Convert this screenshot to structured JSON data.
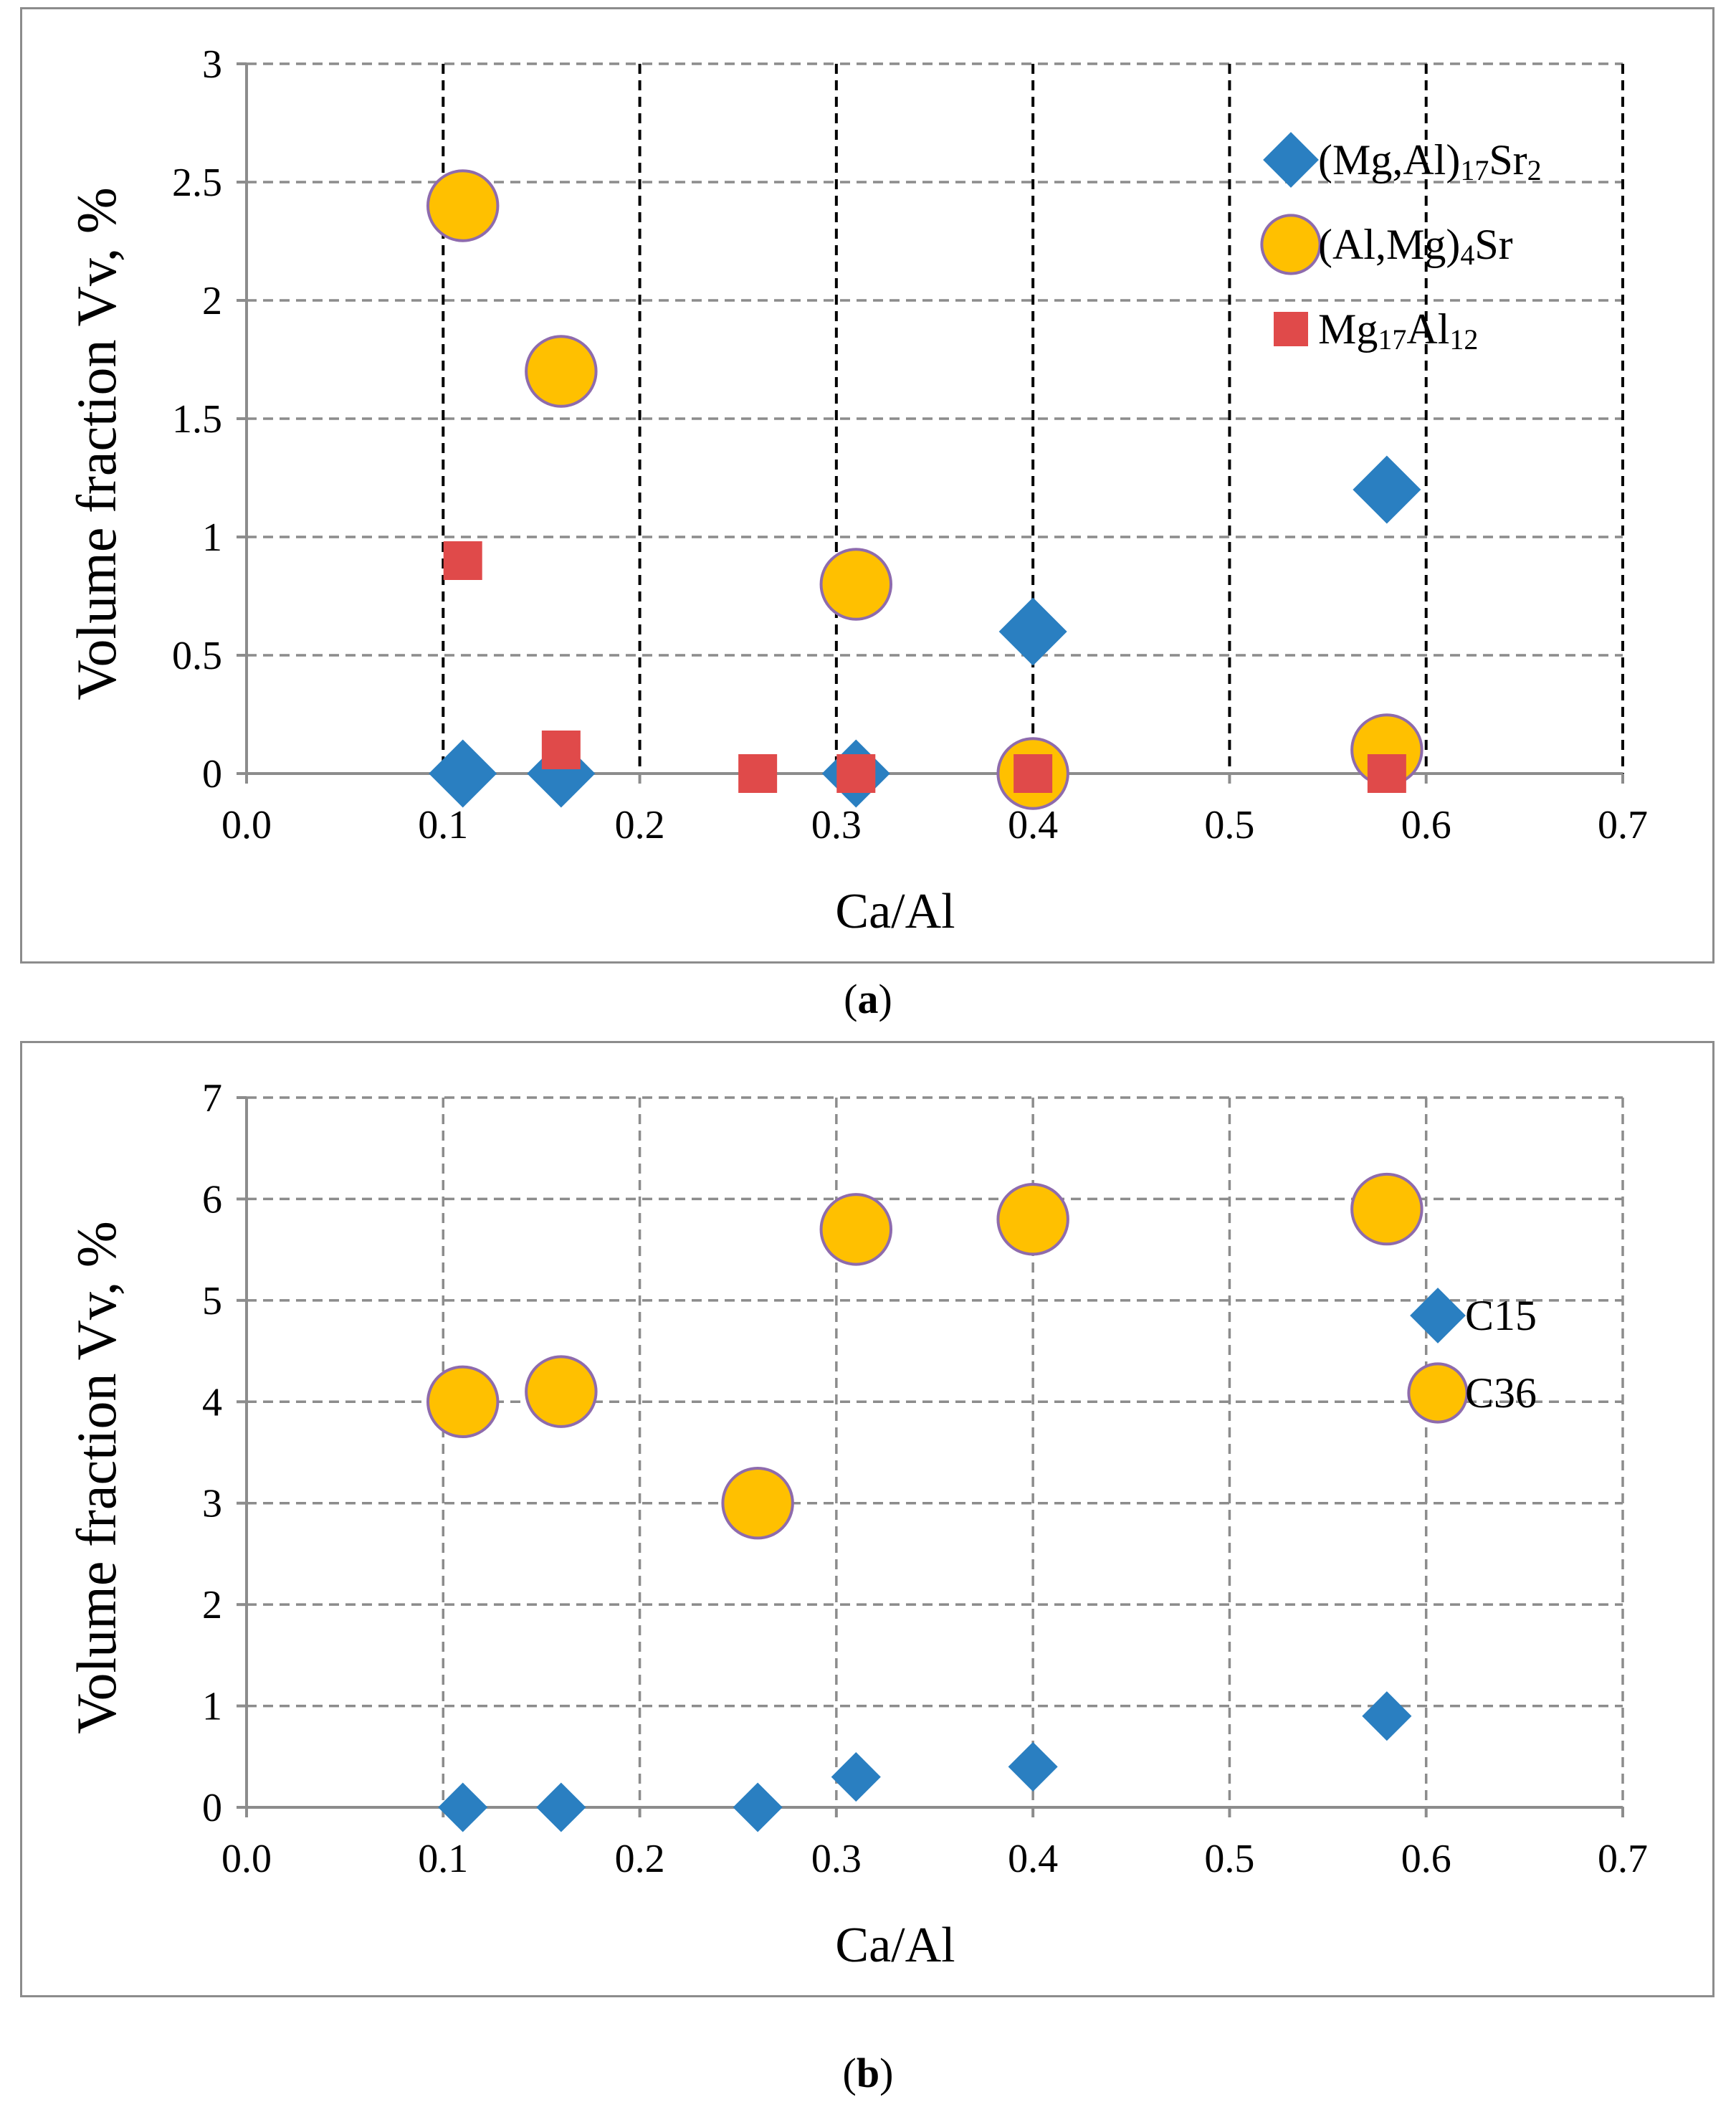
{
  "figure": {
    "caption_a": "a",
    "caption_b": "b"
  },
  "chart_data": [
    {
      "type": "scatter",
      "panel": "a",
      "title": "",
      "xlabel": "Ca/Al",
      "ylabel": "Volume fraction Vv, %",
      "xlim": [
        0.0,
        0.7
      ],
      "ylim": [
        0,
        3
      ],
      "xticks": [
        "0.0",
        "0.1",
        "0.2",
        "0.3",
        "0.4",
        "0.5",
        "0.6",
        "0.7"
      ],
      "yticks": [
        "0",
        "0.5",
        "1",
        "1.5",
        "2",
        "2.5",
        "3"
      ],
      "ytick_values": [
        0,
        0.5,
        1,
        1.5,
        2,
        2.5,
        3
      ],
      "grid": true,
      "vertical_grid_style": "black dashed",
      "legend_position": "top-right",
      "series": [
        {
          "name": [
            "(Mg,Al)",
            "17",
            "Sr",
            "2",
            ""
          ],
          "marker": "diamond",
          "color": "#2a7fc1",
          "x": [
            0.11,
            0.16,
            0.31,
            0.4,
            0.4,
            0.58
          ],
          "y": [
            0.0,
            0.0,
            0.0,
            0.0,
            0.6,
            1.2
          ]
        },
        {
          "name": [
            "(Al,Mg)",
            "4",
            "Sr",
            "",
            ""
          ],
          "marker": "circle",
          "color": "#ffc000",
          "edge_color": "#8e6bad",
          "x": [
            0.11,
            0.16,
            0.31,
            0.4,
            0.58
          ],
          "y": [
            2.4,
            1.7,
            0.8,
            0.0,
            0.1
          ]
        },
        {
          "name": [
            "Mg",
            "17",
            "Al",
            "12",
            ""
          ],
          "marker": "square",
          "color": "#e04a4a",
          "x": [
            0.11,
            0.16,
            0.26,
            0.31,
            0.4,
            0.58
          ],
          "y": [
            0.9,
            0.1,
            0.0,
            0.0,
            0.0,
            0.0
          ]
        }
      ]
    },
    {
      "type": "scatter",
      "panel": "b",
      "title": "",
      "xlabel": "Ca/Al",
      "ylabel": "Volume fraction Vv, %",
      "xlim": [
        0.0,
        0.7
      ],
      "ylim": [
        0,
        7
      ],
      "xticks": [
        "0.0",
        "0.1",
        "0.2",
        "0.3",
        "0.4",
        "0.5",
        "0.6",
        "0.7"
      ],
      "yticks": [
        "0",
        "1",
        "2",
        "3",
        "4",
        "5",
        "6",
        "7"
      ],
      "ytick_values": [
        0,
        1,
        2,
        3,
        4,
        5,
        6,
        7
      ],
      "grid": true,
      "vertical_grid_style": "gray dashed",
      "legend_position": "right",
      "series": [
        {
          "name": [
            "C15",
            "",
            "",
            "",
            ""
          ],
          "marker": "diamond",
          "color": "#2a7fc1",
          "x": [
            0.11,
            0.16,
            0.26,
            0.31,
            0.4,
            0.58
          ],
          "y": [
            0.0,
            0.0,
            0.0,
            0.3,
            0.4,
            0.9
          ]
        },
        {
          "name": [
            "C36",
            "",
            "",
            "",
            ""
          ],
          "marker": "circle",
          "color": "#ffc000",
          "edge_color": "#8e6bad",
          "x": [
            0.11,
            0.16,
            0.26,
            0.31,
            0.4,
            0.58
          ],
          "y": [
            4.0,
            4.1,
            3.0,
            5.7,
            5.8,
            5.9
          ]
        }
      ]
    }
  ]
}
